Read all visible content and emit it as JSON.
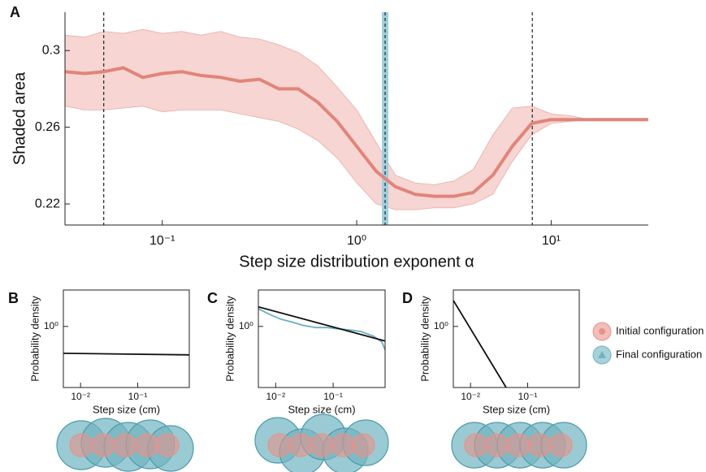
{
  "chart_data": [
    {
      "type": "line",
      "label": "A",
      "xlabel": "Step size distribution exponent α",
      "ylabel": "Shaded area",
      "xscale": "log",
      "xlim": [
        0.0316,
        31.6
      ],
      "ylim": [
        0.209,
        0.32
      ],
      "xticks": [
        {
          "value": 0.1,
          "label": "10⁻¹"
        },
        {
          "value": 1,
          "label": "10⁰"
        },
        {
          "value": 10,
          "label": "10¹"
        }
      ],
      "yticks": [
        0.22,
        0.26,
        0.3
      ],
      "x": [
        0.0316,
        0.0398,
        0.0501,
        0.0631,
        0.0794,
        0.1,
        0.126,
        0.158,
        0.2,
        0.251,
        0.316,
        0.398,
        0.501,
        0.631,
        0.794,
        1,
        1.26,
        1.58,
        2,
        2.51,
        3.16,
        3.98,
        5.01,
        6.31,
        7.94,
        10,
        12.6,
        15.8,
        20,
        25.1,
        31.6
      ],
      "series": [
        {
          "color": "#e0857a",
          "band_color": "#f6d5d2",
          "values": [
            0.289,
            0.288,
            0.289,
            0.291,
            0.286,
            0.288,
            0.289,
            0.287,
            0.286,
            0.284,
            0.285,
            0.28,
            0.28,
            0.273,
            0.263,
            0.25,
            0.237,
            0.229,
            0.225,
            0.224,
            0.224,
            0.226,
            0.235,
            0.25,
            0.262,
            0.264,
            0.264,
            0.264,
            0.264,
            0.264,
            0.264
          ],
          "upper": [
            0.308,
            0.307,
            0.31,
            0.309,
            0.311,
            0.309,
            0.31,
            0.308,
            0.31,
            0.307,
            0.306,
            0.303,
            0.299,
            0.292,
            0.281,
            0.269,
            0.252,
            0.235,
            0.231,
            0.23,
            0.232,
            0.238,
            0.256,
            0.27,
            0.271,
            0.267,
            0.266,
            0.264,
            0.264,
            0.264,
            0.264
          ],
          "lower": [
            0.271,
            0.269,
            0.269,
            0.27,
            0.271,
            0.268,
            0.269,
            0.269,
            0.269,
            0.267,
            0.265,
            0.263,
            0.259,
            0.253,
            0.244,
            0.231,
            0.22,
            0.217,
            0.217,
            0.218,
            0.218,
            0.22,
            0.225,
            0.242,
            0.256,
            0.262,
            0.263,
            0.264,
            0.264,
            0.264,
            0.264
          ]
        }
      ],
      "vlines": [
        0.05,
        8
      ],
      "highlight": 1.4,
      "highlight_color": "#9fd0df"
    },
    {
      "type": "line",
      "label": "B",
      "xlabel": "Step size (cm)",
      "ylabel": "Probability density",
      "xscale": "log",
      "yscale": "log",
      "xlim": [
        0.005,
        0.8
      ],
      "ylim": [
        0.065,
        5.1
      ],
      "xticks": [
        {
          "value": 0.01,
          "label": "10⁻²"
        },
        {
          "value": 0.1,
          "label": "10⁻¹"
        }
      ],
      "yticks": [
        {
          "value": 1,
          "label": "10⁰"
        }
      ],
      "series": [
        {
          "color": "#111111",
          "x": [
            0.005,
            0.8
          ],
          "values": [
            0.3,
            0.28
          ]
        }
      ]
    },
    {
      "type": "line",
      "label": "C",
      "xlabel": "Step size (cm)",
      "ylabel": "Probability density",
      "xscale": "log",
      "yscale": "log",
      "xlim": [
        0.005,
        0.8
      ],
      "ylim": [
        0.065,
        5.1
      ],
      "xticks": [
        {
          "value": 0.01,
          "label": "10⁻²"
        },
        {
          "value": 0.1,
          "label": "10⁻¹"
        }
      ],
      "yticks": [
        {
          "value": 1,
          "label": "10⁰"
        }
      ],
      "series": [
        {
          "color": "#6aaec0",
          "x": [
            0.005,
            0.008,
            0.012,
            0.02,
            0.03,
            0.05,
            0.08,
            0.12,
            0.2,
            0.3,
            0.5,
            0.7,
            0.8
          ],
          "values": [
            2.2,
            1.7,
            1.4,
            1.2,
            1.05,
            0.95,
            0.95,
            0.9,
            0.85,
            0.8,
            0.65,
            0.5,
            0.35
          ]
        },
        {
          "color": "#111111",
          "x": [
            0.005,
            0.8
          ],
          "values": [
            2.4,
            0.52
          ]
        }
      ]
    },
    {
      "type": "line",
      "label": "D",
      "xlabel": "Step size (cm)",
      "ylabel": "Probability density",
      "xscale": "log",
      "yscale": "log",
      "xlim": [
        0.005,
        0.8
      ],
      "ylim": [
        0.065,
        5.1
      ],
      "xticks": [
        {
          "value": 0.01,
          "label": "10⁻²"
        },
        {
          "value": 0.1,
          "label": "10⁻¹"
        }
      ],
      "yticks": [
        {
          "value": 1,
          "label": "10⁰"
        }
      ],
      "series": [
        {
          "color": "#111111",
          "x": [
            0.005,
            0.042
          ],
          "values": [
            3.2,
            0.065
          ]
        }
      ]
    }
  ],
  "legend": [
    {
      "name": "Initial configuration",
      "color": "#e8928a"
    },
    {
      "name": "Final configuration",
      "color": "#6fb3c0"
    }
  ]
}
